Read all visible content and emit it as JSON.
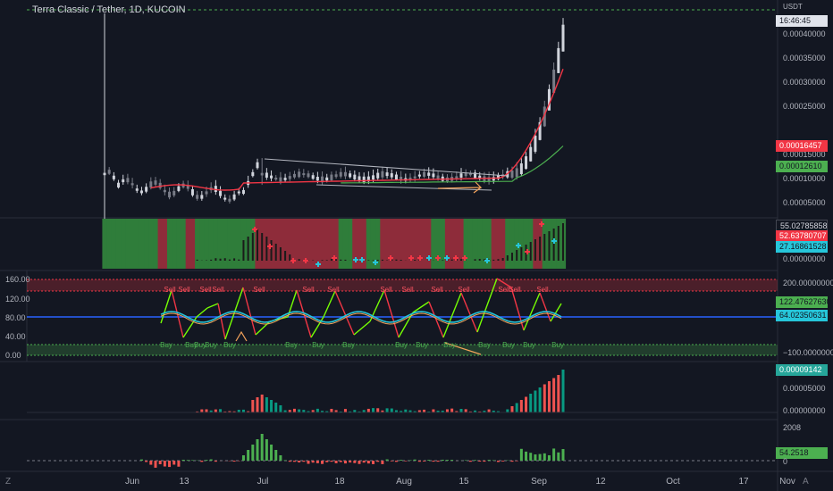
{
  "header": {
    "title": "Terra Classic / Tether, 1D, KUCOIN",
    "currency": "USDT",
    "countdown": "16:46:45"
  },
  "price_axis": [
    "0.00040000",
    "0.00035000",
    "0.00030000",
    "0.00025000",
    "0.00015000",
    "0.00010000",
    "0.00005000"
  ],
  "price_badges": {
    "ma_red": "0.00016457",
    "ma_green": "0.00012610"
  },
  "osc1": {
    "badges": [
      "55.02785858",
      "52.63780707",
      "27.16861528"
    ],
    "zero": "0.00000000"
  },
  "osc2": {
    "left_axis": [
      "160.00",
      "120.00",
      "80.00",
      "40.00",
      "0.00"
    ],
    "right_top": "200.00000000",
    "right_bottom": "−100.00000000",
    "badges": [
      "122.47627630",
      "64.02350631"
    ],
    "sell_label": "Sell",
    "buy_label": "Buy"
  },
  "volume": {
    "badge": "0.00009142",
    "tick": "0.00005000",
    "zero": "0.00000000"
  },
  "histo": {
    "top": "2008",
    "badge": "54.2518",
    "zero": "0"
  },
  "time_axis": [
    "Jun",
    "13",
    "Jul",
    "18",
    "Aug",
    "15",
    "Sep",
    "12",
    "Oct",
    "17",
    "Nov"
  ],
  "corner_left": "Z",
  "corner_right": "A",
  "colors": {
    "bg": "#131722",
    "up": "#d1d4dc",
    "down": "#787b86",
    "red": "#f23645",
    "green": "#089981",
    "lime": "#4caf50",
    "cyan": "#26c6da",
    "orange": "#f5a35b",
    "blue": "#2962ff"
  }
}
